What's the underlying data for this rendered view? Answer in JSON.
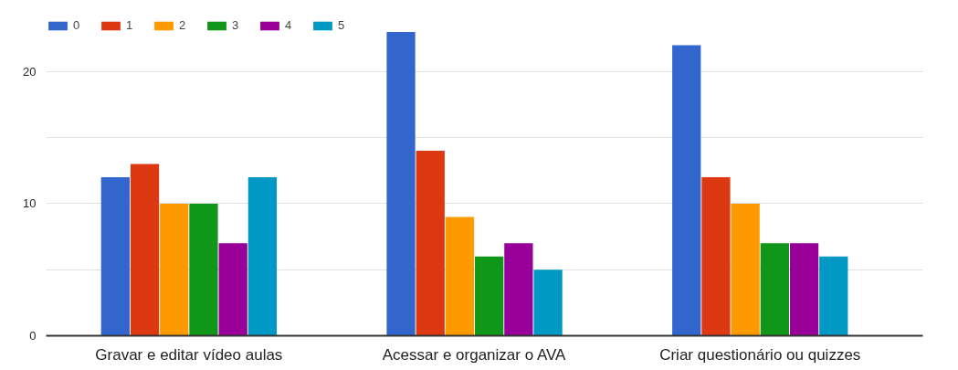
{
  "chart_data": {
    "type": "bar",
    "categories": [
      "Gravar e editar vídeo aulas",
      "Acessar e organizar o AVA",
      "Criar questionário ou quizzes"
    ],
    "series": [
      {
        "name": "0",
        "color": "#3366cc",
        "values": [
          12,
          23,
          22
        ]
      },
      {
        "name": "1",
        "color": "#dc3912",
        "values": [
          13,
          14,
          12
        ]
      },
      {
        "name": "2",
        "color": "#ff9900",
        "values": [
          10,
          9,
          10
        ]
      },
      {
        "name": "3",
        "color": "#109618",
        "values": [
          10,
          6,
          7
        ]
      },
      {
        "name": "4",
        "color": "#990099",
        "values": [
          7,
          7,
          7
        ]
      },
      {
        "name": "5",
        "color": "#0099c6",
        "values": [
          12,
          5,
          6
        ]
      }
    ],
    "ylim": [
      0,
      24
    ],
    "yticks": [
      0,
      {
        "value": 5,
        "label": null
      },
      10,
      {
        "value": 15,
        "label": null
      },
      20
    ],
    "grid": "y",
    "legend": "top left"
  }
}
